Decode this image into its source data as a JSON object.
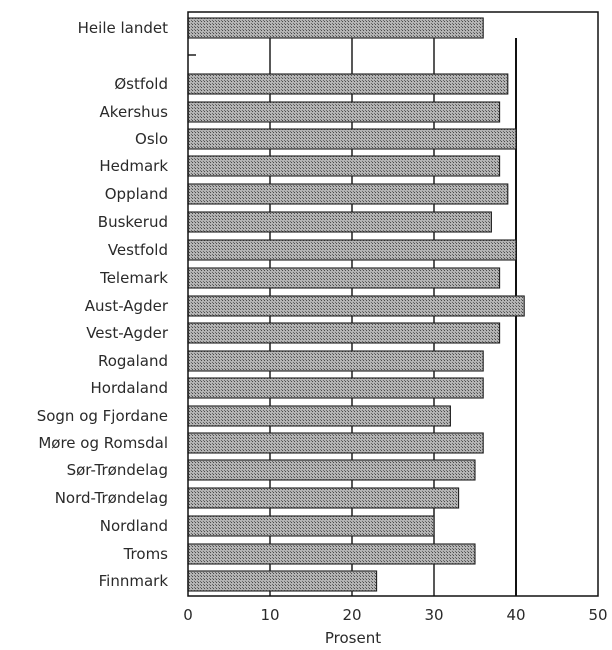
{
  "chart_data": {
    "type": "bar",
    "orientation": "horizontal",
    "categories": [
      "Heile landet",
      "Østfold",
      "Akershus",
      "Oslo",
      "Hedmark",
      "Oppland",
      "Buskerud",
      "Vestfold",
      "Telemark",
      "Aust-Agder",
      "Vest-Agder",
      "Rogaland",
      "Hordaland",
      "Sogn og Fjordane",
      "Møre og Romsdal",
      "Sør-Trøndelag",
      "Nord-Trøndelag",
      "Nordland",
      "Troms",
      "Finnmark"
    ],
    "values": [
      36,
      39,
      38,
      40,
      38,
      39,
      37,
      40,
      38,
      41,
      38,
      36,
      36,
      32,
      36,
      35,
      33,
      30,
      35,
      23
    ],
    "xlabel": "Prosent",
    "ylabel": "",
    "xlim": [
      0,
      50
    ],
    "xticks": [
      0,
      10,
      20,
      30,
      40,
      50
    ],
    "grid": "vertical",
    "legend": "none",
    "colors": {
      "bar_fill": "#a9a9a9",
      "bar_border": "#1e1e1e",
      "axis": "#111111",
      "text": "#2a2a2a"
    }
  }
}
